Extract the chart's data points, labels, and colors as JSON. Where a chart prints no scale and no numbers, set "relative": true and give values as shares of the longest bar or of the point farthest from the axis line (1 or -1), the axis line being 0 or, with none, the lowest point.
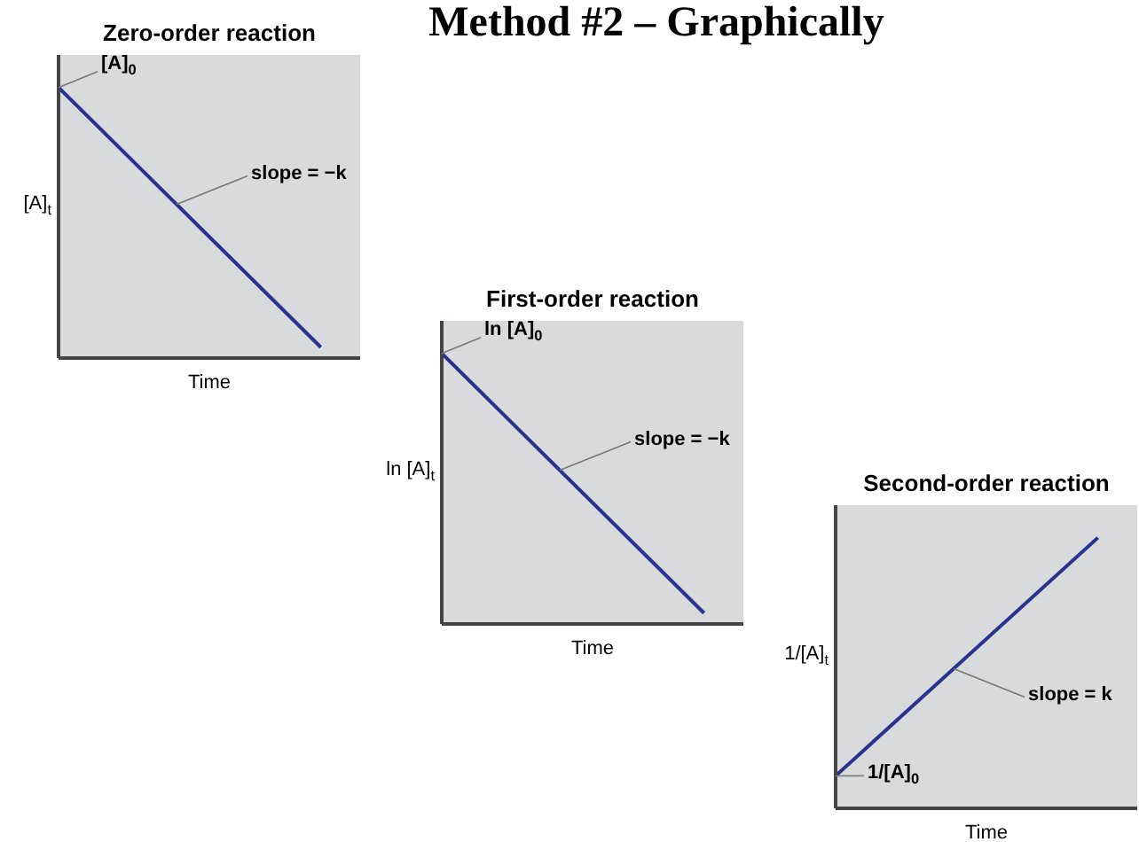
{
  "chart_data": [
    {
      "type": "other",
      "title": "Method #2 – Graphically"
    },
    {
      "type": "line",
      "title": "Zero-order reaction",
      "xlabel": "Time",
      "ylabel": "[A]$_{t}$",
      "relative": true,
      "categories": [
        null,
        null
      ],
      "series": [
        {
          "color": "#27338f",
          "values": [
            1,
            0.04
          ]
        }
      ],
      "annotations": [
        "[A]$_{0}$",
        "slope = −k"
      ]
    },
    {
      "type": "line",
      "title": "First-order reaction",
      "xlabel": "Time",
      "ylabel": "ln [A]$_{t}$",
      "relative": true,
      "categories": [
        null,
        null
      ],
      "series": [
        {
          "color": "#27338f",
          "values": [
            1,
            0.04
          ]
        }
      ],
      "annotations": [
        "ln [A]$_{0}$",
        "slope = −k"
      ]
    },
    {
      "type": "line",
      "title": "Second-order reaction",
      "xlabel": "Time",
      "ylabel": "1/[A]$_{t}$",
      "relative": true,
      "categories": [
        null,
        null
      ],
      "series": [
        {
          "color": "#27338f",
          "values": [
            0.12,
            1
          ]
        }
      ],
      "annotations": [
        "1/[A]$_{0}$",
        "slope = k"
      ]
    }
  ]
}
